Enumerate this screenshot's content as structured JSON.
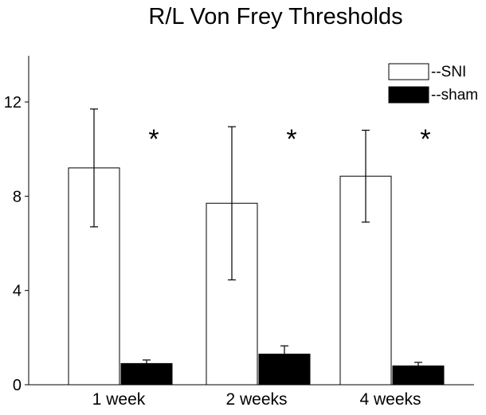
{
  "chart_data": {
    "type": "bar",
    "title": "R/L Von Frey Thresholds",
    "xlabel": "",
    "ylabel": "",
    "categories": [
      "1 week",
      "2 weeks",
      "4 weeks"
    ],
    "ylim": [
      0,
      14
    ],
    "yticks": [
      0,
      4,
      8,
      12
    ],
    "grid": false,
    "legend_position": "top-right",
    "series": [
      {
        "name": "--SNI",
        "fill": "#ffffff",
        "values": [
          9.2,
          7.7,
          8.85
        ],
        "error": [
          2.5,
          3.25,
          1.95
        ]
      },
      {
        "name": "--sham",
        "fill": "#000000",
        "values": [
          0.9,
          1.3,
          0.8
        ],
        "error": [
          0.15,
          0.35,
          0.15
        ]
      }
    ],
    "annotations": [
      "*",
      "*",
      "*"
    ]
  }
}
